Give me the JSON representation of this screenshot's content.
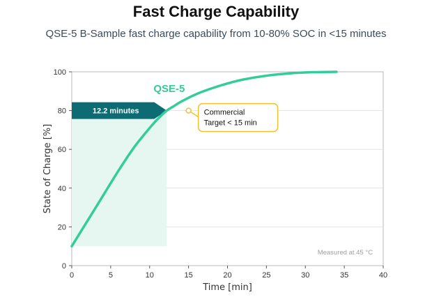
{
  "page": {
    "title": "Fast Charge Capability",
    "subtitle": "QSE-5 B-Sample fast charge capability from 10-80% SOC in <15 minutes"
  },
  "chart_data": {
    "type": "line",
    "xlabel": "Time [min]",
    "ylabel": "State of Charge [%]",
    "xlim": [
      0,
      40
    ],
    "ylim": [
      0,
      100
    ],
    "xticks": [
      0,
      5,
      10,
      15,
      20,
      25,
      30,
      35,
      40
    ],
    "yticks": [
      0,
      20,
      40,
      60,
      80,
      100
    ],
    "grid": "horizontal",
    "series": [
      {
        "name": "QSE-5",
        "color": "#34cc9b",
        "x": [
          0,
          2,
          4,
          6,
          8,
          10,
          11,
          12.2,
          13,
          14,
          16,
          18,
          20,
          22,
          25,
          28,
          31,
          34
        ],
        "y": [
          10,
          23,
          36,
          49,
          61,
          71,
          75.5,
          80,
          82,
          84.5,
          88.5,
          91.5,
          94,
          96,
          98,
          99.2,
          99.8,
          100
        ]
      }
    ],
    "shaded_region": {
      "x": [
        0,
        12.2
      ],
      "y": [
        10,
        80
      ],
      "color": "#e6f7f1"
    },
    "annotations": {
      "charge_time": {
        "text": "12.2 minutes",
        "x_start": 0,
        "x_end": 12.2,
        "y": 80,
        "color": "#0d6b74"
      },
      "target": {
        "text_line1": "Commercial",
        "text_line2": "Target < 15 min",
        "x": 15,
        "y": 80,
        "color": "#f2c12e"
      },
      "measurement_note": "Measured at 45 °C"
    }
  }
}
